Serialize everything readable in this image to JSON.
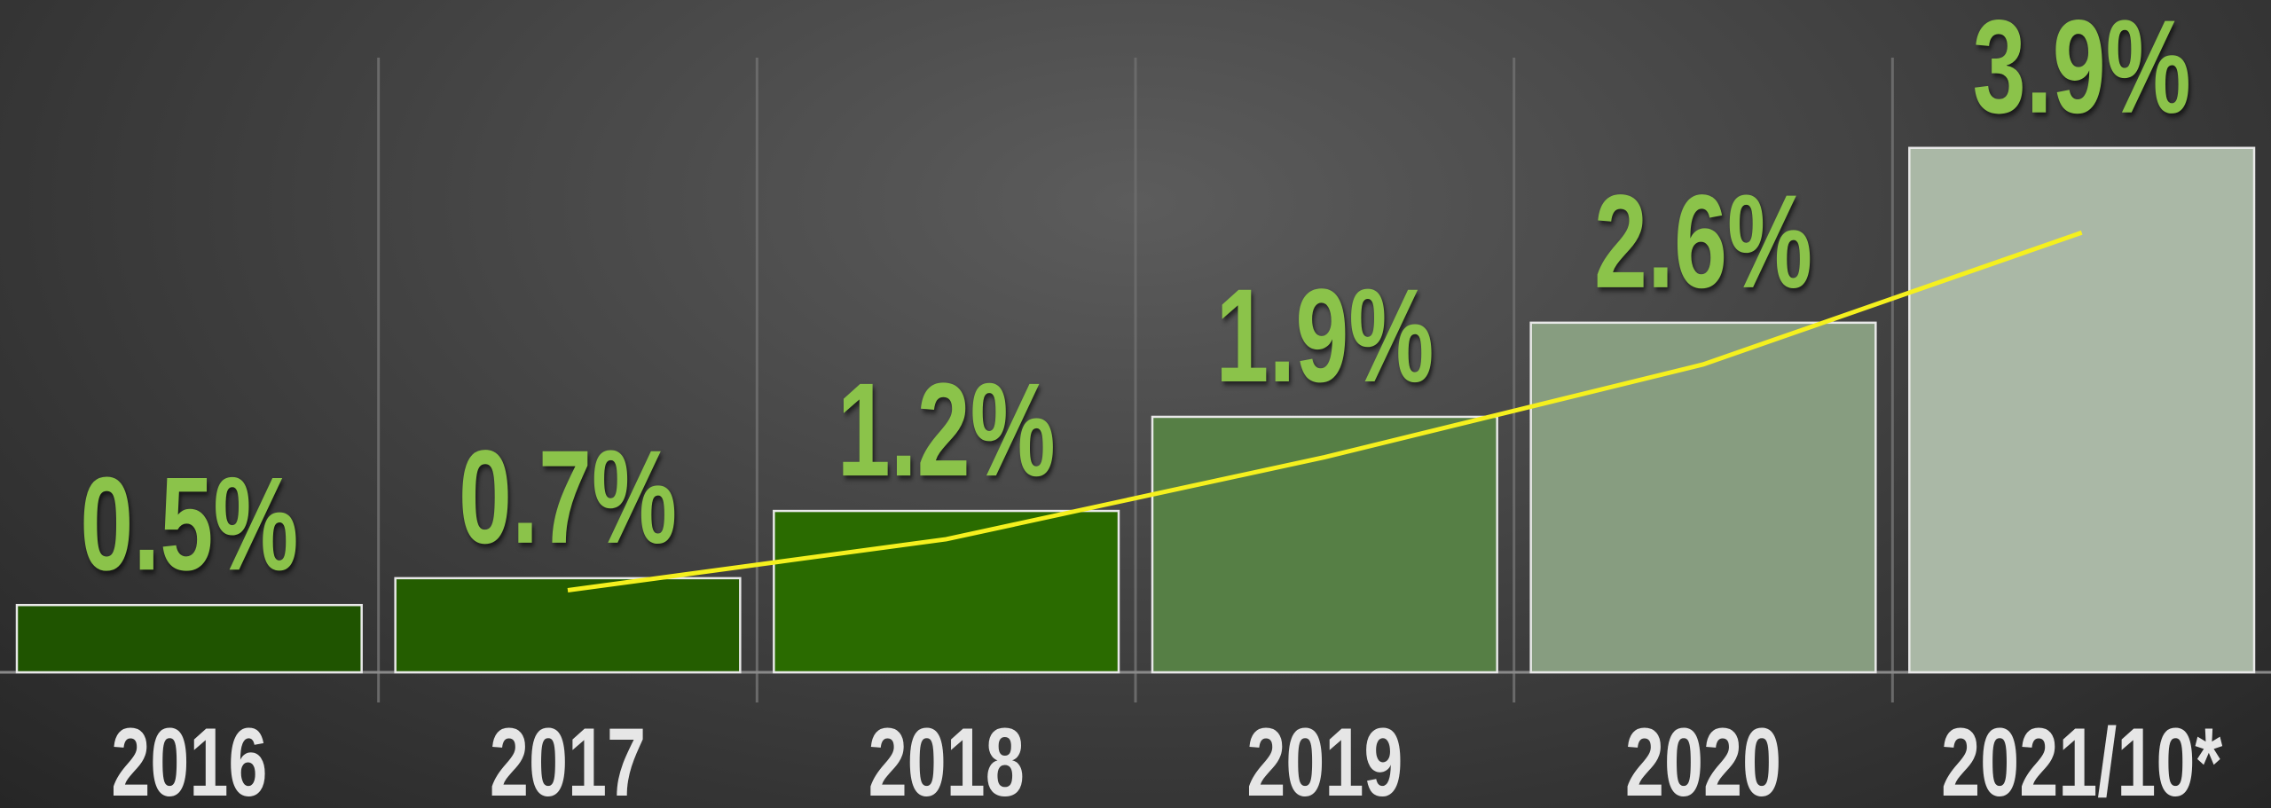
{
  "chart_data": {
    "type": "bar",
    "categories": [
      "2016",
      "2017",
      "2018",
      "2019",
      "2020",
      "2021/10*"
    ],
    "values": [
      0.5,
      0.7,
      1.2,
      1.9,
      2.6,
      3.9
    ],
    "value_labels": [
      "0.5%",
      "0.7%",
      "1.2%",
      "1.9%",
      "2.6%",
      "3.9%"
    ],
    "colors": [
      "#1f5400",
      "#245d00",
      "#2a6b00",
      "#567f45",
      "#879d80",
      "#aab8a6"
    ],
    "label_color": "#8bc34a",
    "trend_line": {
      "color": "#f5f01e",
      "values": [
        null,
        0.61,
        0.99,
        1.6,
        2.29,
        3.27
      ]
    },
    "ylim": [
      0,
      5
    ]
  }
}
